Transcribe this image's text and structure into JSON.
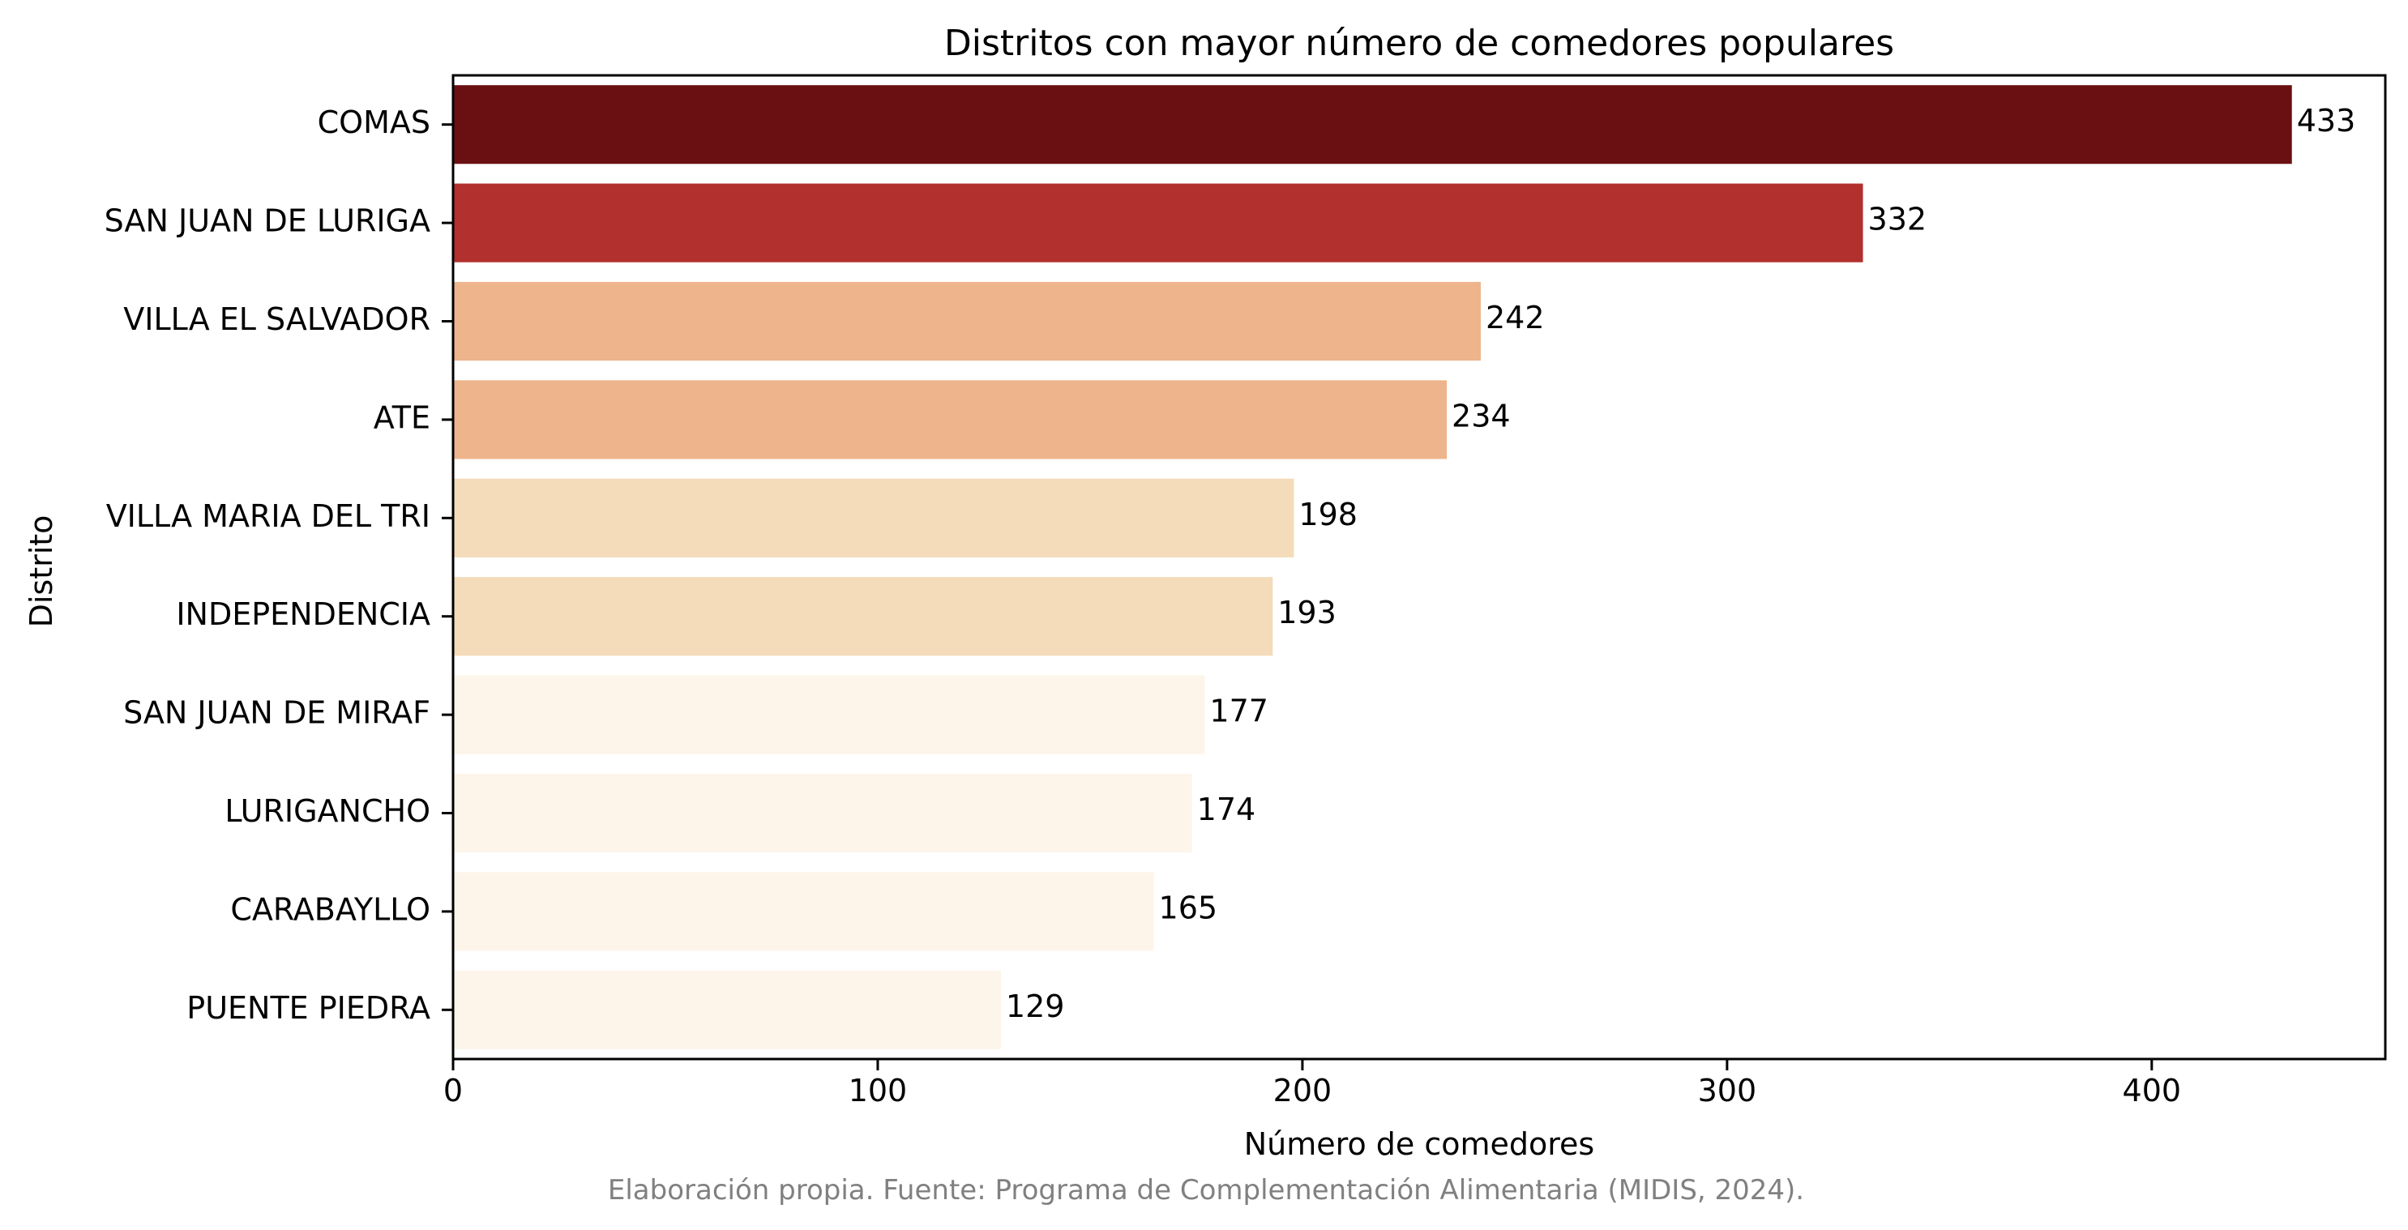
{
  "chart_data": {
    "type": "bar",
    "orientation": "horizontal",
    "title": "Distritos con mayor número de comedores populares",
    "xlabel": "Número de comedores",
    "ylabel": "Distrito",
    "categories": [
      "COMAS",
      "SAN JUAN DE LURIGA",
      "VILLA EL SALVADOR",
      "ATE",
      "VILLA MARIA DEL TRI",
      "INDEPENDENCIA",
      "SAN JUAN DE MIRAF",
      "LURIGANCHO",
      "CARABAYLLO",
      "PUENTE PIEDRA"
    ],
    "values": [
      433,
      332,
      242,
      234,
      198,
      193,
      177,
      174,
      165,
      129
    ],
    "colors": [
      "#6b1012",
      "#b2302d",
      "#eeb48c",
      "#eeb48c",
      "#f4dbb9",
      "#f4dbb9",
      "#fdf5ea",
      "#fdf5ea",
      "#fdf5ea",
      "#fdf5ea"
    ],
    "xlim": [
      0,
      455
    ],
    "xticks": [
      0,
      100,
      200,
      300,
      400
    ],
    "grid": false,
    "legend": "none",
    "source_note": "Elaboración propia. Fuente: Programa de Complementación Alimentaria (MIDIS, 2024)."
  }
}
